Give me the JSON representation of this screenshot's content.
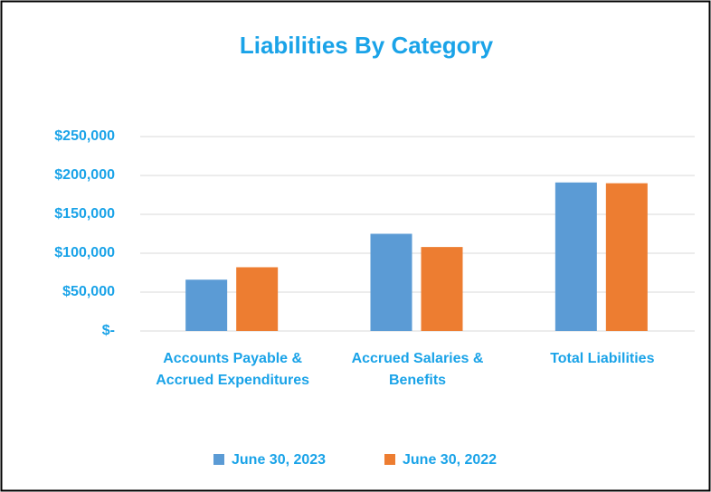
{
  "chart_data": {
    "type": "bar",
    "title": "Liabilities By Category",
    "categories": [
      "Accounts Payable & Accrued Expenditures",
      "Accrued Salaries & Benefits",
      "Total Liabilities"
    ],
    "series": [
      {
        "name": "June 30, 2023",
        "color": "#5b9bd5",
        "values": [
          66000,
          125000,
          191000
        ]
      },
      {
        "name": "June 30, 2022",
        "color": "#ed7d31",
        "values": [
          82000,
          108000,
          190000
        ]
      }
    ],
    "ylim": [
      0,
      250000
    ],
    "yticks": [
      {
        "value": 0,
        "label": "$-"
      },
      {
        "value": 50000,
        "label": "$50,000"
      },
      {
        "value": 100000,
        "label": "$100,000"
      },
      {
        "value": 150000,
        "label": "$150,000"
      },
      {
        "value": 200000,
        "label": "$200,000"
      },
      {
        "value": 250000,
        "label": "$250,000"
      }
    ],
    "grid": true,
    "legend": "bottom"
  }
}
